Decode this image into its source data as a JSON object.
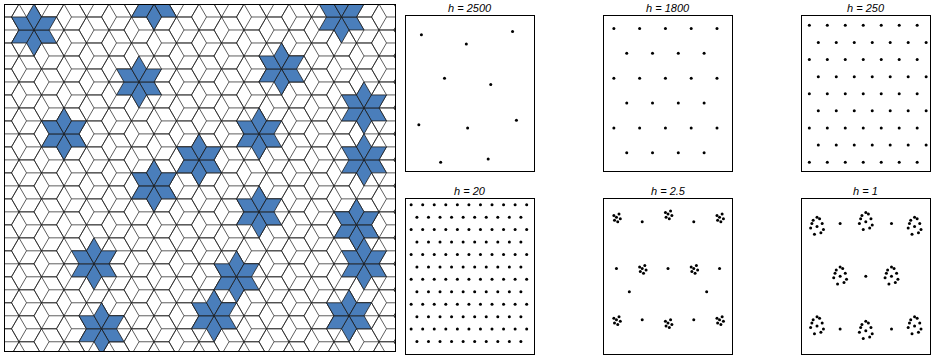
{
  "chart_data": [
    {
      "type": "scatter",
      "title": "h = 2500",
      "xlim": [
        0,
        1
      ],
      "ylim": [
        0,
        1
      ],
      "xticks": [],
      "yticks": [],
      "tick_labels": false,
      "grid": false,
      "marker": "dot",
      "color": "#000000",
      "x": [
        0.12,
        0.47,
        0.83,
        0.3,
        0.66,
        0.1,
        0.48,
        0.86,
        0.27,
        0.64
      ],
      "y": [
        0.88,
        0.82,
        0.9,
        0.6,
        0.56,
        0.3,
        0.28,
        0.33,
        0.06,
        0.08
      ]
    },
    {
      "type": "scatter",
      "title": "h = 1800",
      "xlim": [
        0,
        1
      ],
      "ylim": [
        0,
        1
      ],
      "xticks": [],
      "yticks": [],
      "tick_labels": false,
      "grid": false,
      "marker": "dot",
      "color": "#000000",
      "x": [
        0.08,
        0.28,
        0.48,
        0.68,
        0.88,
        0.18,
        0.38,
        0.58,
        0.78,
        0.08,
        0.28,
        0.48,
        0.68,
        0.88,
        0.18,
        0.38,
        0.58,
        0.78,
        0.08,
        0.28,
        0.48,
        0.68,
        0.88,
        0.18,
        0.38,
        0.58,
        0.78
      ],
      "y": [
        0.92,
        0.92,
        0.92,
        0.92,
        0.92,
        0.76,
        0.76,
        0.76,
        0.76,
        0.6,
        0.6,
        0.6,
        0.6,
        0.6,
        0.44,
        0.44,
        0.44,
        0.44,
        0.28,
        0.28,
        0.28,
        0.28,
        0.28,
        0.12,
        0.12,
        0.12,
        0.12
      ]
    },
    {
      "type": "scatter",
      "title": "h = 250",
      "xlim": [
        0,
        1
      ],
      "ylim": [
        0,
        1
      ],
      "xticks": [],
      "yticks": [],
      "tick_labels": false,
      "grid": false,
      "marker": "dot",
      "color": "#000000",
      "x": [
        0.06,
        0.2,
        0.34,
        0.48,
        0.62,
        0.76,
        0.9,
        0.13,
        0.27,
        0.41,
        0.55,
        0.69,
        0.83,
        0.97,
        0.06,
        0.2,
        0.34,
        0.48,
        0.62,
        0.76,
        0.9,
        0.13,
        0.27,
        0.41,
        0.55,
        0.69,
        0.83,
        0.97,
        0.06,
        0.2,
        0.34,
        0.48,
        0.62,
        0.76,
        0.9,
        0.13,
        0.27,
        0.41,
        0.55,
        0.69,
        0.83,
        0.97,
        0.06,
        0.2,
        0.34,
        0.48,
        0.62,
        0.76,
        0.9,
        0.13,
        0.27,
        0.41,
        0.55,
        0.69,
        0.83,
        0.97,
        0.06,
        0.2,
        0.34,
        0.48,
        0.62,
        0.76,
        0.9
      ],
      "y": [
        0.94,
        0.94,
        0.94,
        0.94,
        0.94,
        0.94,
        0.94,
        0.83,
        0.83,
        0.83,
        0.83,
        0.83,
        0.83,
        0.83,
        0.72,
        0.72,
        0.72,
        0.72,
        0.72,
        0.72,
        0.72,
        0.61,
        0.61,
        0.61,
        0.61,
        0.61,
        0.61,
        0.61,
        0.5,
        0.5,
        0.5,
        0.5,
        0.5,
        0.5,
        0.5,
        0.39,
        0.39,
        0.39,
        0.39,
        0.39,
        0.39,
        0.39,
        0.28,
        0.28,
        0.28,
        0.28,
        0.28,
        0.28,
        0.28,
        0.17,
        0.17,
        0.17,
        0.17,
        0.17,
        0.17,
        0.17,
        0.06,
        0.06,
        0.06,
        0.06,
        0.06,
        0.06,
        0.06
      ]
    },
    {
      "type": "scatter",
      "title": "h = 20",
      "xlim": [
        0,
        1
      ],
      "ylim": [
        0,
        1
      ],
      "xticks": [],
      "yticks": [],
      "tick_labels": false,
      "grid": false,
      "marker": "dot",
      "color": "#000000",
      "x": [
        0.04,
        0.13,
        0.22,
        0.31,
        0.4,
        0.49,
        0.58,
        0.67,
        0.76,
        0.85,
        0.94,
        0.085,
        0.175,
        0.265,
        0.355,
        0.445,
        0.535,
        0.625,
        0.715,
        0.805,
        0.895,
        0.04,
        0.13,
        0.22,
        0.31,
        0.4,
        0.49,
        0.58,
        0.67,
        0.76,
        0.85,
        0.94,
        0.085,
        0.175,
        0.265,
        0.355,
        0.445,
        0.535,
        0.625,
        0.715,
        0.805,
        0.895,
        0.04,
        0.13,
        0.22,
        0.31,
        0.4,
        0.49,
        0.58,
        0.67,
        0.76,
        0.85,
        0.94,
        0.085,
        0.175,
        0.265,
        0.355,
        0.445,
        0.535,
        0.625,
        0.715,
        0.805,
        0.895,
        0.04,
        0.13,
        0.22,
        0.31,
        0.4,
        0.49,
        0.58,
        0.67,
        0.76,
        0.85,
        0.94,
        0.085,
        0.175,
        0.265,
        0.355,
        0.445,
        0.535,
        0.625,
        0.715,
        0.805,
        0.895,
        0.04,
        0.13,
        0.22,
        0.31,
        0.4,
        0.49,
        0.58,
        0.67,
        0.76,
        0.85,
        0.94,
        0.085,
        0.175,
        0.265,
        0.355,
        0.445,
        0.535,
        0.625,
        0.715,
        0.805,
        0.895,
        0.04,
        0.13,
        0.22,
        0.31,
        0.4,
        0.49,
        0.58,
        0.67,
        0.76,
        0.85,
        0.94,
        0.085,
        0.175,
        0.265,
        0.355,
        0.445,
        0.535,
        0.625,
        0.715,
        0.805,
        0.895
      ],
      "y": [
        0.96,
        0.96,
        0.96,
        0.96,
        0.96,
        0.96,
        0.96,
        0.96,
        0.96,
        0.96,
        0.96,
        0.88,
        0.88,
        0.88,
        0.88,
        0.88,
        0.88,
        0.88,
        0.88,
        0.88,
        0.88,
        0.8,
        0.8,
        0.8,
        0.8,
        0.8,
        0.8,
        0.8,
        0.8,
        0.8,
        0.8,
        0.8,
        0.72,
        0.72,
        0.72,
        0.72,
        0.72,
        0.72,
        0.72,
        0.72,
        0.72,
        0.72,
        0.64,
        0.64,
        0.64,
        0.64,
        0.64,
        0.64,
        0.64,
        0.64,
        0.64,
        0.64,
        0.64,
        0.56,
        0.56,
        0.56,
        0.56,
        0.56,
        0.56,
        0.56,
        0.56,
        0.56,
        0.56,
        0.48,
        0.48,
        0.48,
        0.48,
        0.48,
        0.48,
        0.48,
        0.48,
        0.48,
        0.48,
        0.48,
        0.4,
        0.4,
        0.4,
        0.4,
        0.4,
        0.4,
        0.4,
        0.4,
        0.4,
        0.4,
        0.32,
        0.32,
        0.32,
        0.32,
        0.32,
        0.32,
        0.32,
        0.32,
        0.32,
        0.32,
        0.32,
        0.24,
        0.24,
        0.24,
        0.24,
        0.24,
        0.24,
        0.24,
        0.24,
        0.24,
        0.24,
        0.16,
        0.16,
        0.16,
        0.16,
        0.16,
        0.16,
        0.16,
        0.16,
        0.16,
        0.16,
        0.16,
        0.08,
        0.08,
        0.08,
        0.08,
        0.08,
        0.08,
        0.08,
        0.08,
        0.08,
        0.08
      ]
    },
    {
      "type": "scatter",
      "title": "h = 2.5",
      "xlim": [
        0,
        1
      ],
      "ylim": [
        0,
        1
      ],
      "xticks": [],
      "yticks": [],
      "tick_labels": false,
      "grid": false,
      "marker": "dot",
      "color": "#000000",
      "x": [
        0.1,
        0.12,
        0.08,
        0.11,
        0.085,
        0.13,
        0.5,
        0.52,
        0.48,
        0.51,
        0.485,
        0.53,
        0.9,
        0.92,
        0.88,
        0.91,
        0.885,
        0.93,
        0.3,
        0.32,
        0.28,
        0.31,
        0.285,
        0.33,
        0.7,
        0.72,
        0.68,
        0.71,
        0.685,
        0.73,
        0.1,
        0.12,
        0.08,
        0.11,
        0.085,
        0.13,
        0.5,
        0.52,
        0.48,
        0.51,
        0.485,
        0.53,
        0.9,
        0.92,
        0.88,
        0.91,
        0.885,
        0.93,
        0.3,
        0.7,
        0.2,
        0.8,
        0.3,
        0.7,
        0.5,
        0.1,
        0.9
      ],
      "y": [
        0.88,
        0.9,
        0.89,
        0.85,
        0.86,
        0.87,
        0.9,
        0.92,
        0.91,
        0.87,
        0.88,
        0.89,
        0.88,
        0.9,
        0.89,
        0.85,
        0.86,
        0.87,
        0.55,
        0.57,
        0.56,
        0.52,
        0.53,
        0.54,
        0.55,
        0.57,
        0.56,
        0.52,
        0.53,
        0.54,
        0.22,
        0.24,
        0.23,
        0.19,
        0.2,
        0.21,
        0.2,
        0.22,
        0.21,
        0.17,
        0.18,
        0.19,
        0.22,
        0.24,
        0.23,
        0.19,
        0.2,
        0.21,
        0.85,
        0.85,
        0.4,
        0.4,
        0.22,
        0.22,
        0.55,
        0.55,
        0.55
      ]
    },
    {
      "type": "scatter",
      "title": "h = 1",
      "xlim": [
        0,
        1
      ],
      "ylim": [
        0,
        1
      ],
      "xticks": [],
      "yticks": [],
      "tick_labels": false,
      "grid": false,
      "marker": "dot",
      "color": "#000000",
      "x": [
        0.12,
        0.16,
        0.08,
        0.14,
        0.1,
        0.17,
        0.07,
        0.15,
        0.09,
        0.12,
        0.5,
        0.54,
        0.46,
        0.52,
        0.48,
        0.55,
        0.45,
        0.53,
        0.47,
        0.5,
        0.88,
        0.92,
        0.84,
        0.9,
        0.86,
        0.93,
        0.83,
        0.91,
        0.85,
        0.88,
        0.3,
        0.34,
        0.26,
        0.32,
        0.28,
        0.35,
        0.25,
        0.33,
        0.27,
        0.3,
        0.7,
        0.74,
        0.66,
        0.72,
        0.68,
        0.75,
        0.65,
        0.73,
        0.67,
        0.7,
        0.12,
        0.16,
        0.08,
        0.14,
        0.1,
        0.17,
        0.07,
        0.15,
        0.09,
        0.12,
        0.5,
        0.54,
        0.46,
        0.52,
        0.48,
        0.55,
        0.45,
        0.53,
        0.47,
        0.5,
        0.88,
        0.92,
        0.84,
        0.9,
        0.86,
        0.93,
        0.83,
        0.91,
        0.85,
        0.88,
        0.3,
        0.7,
        0.5,
        0.3,
        0.7
      ],
      "y": [
        0.82,
        0.84,
        0.84,
        0.87,
        0.77,
        0.8,
        0.81,
        0.78,
        0.86,
        0.88,
        0.85,
        0.87,
        0.87,
        0.9,
        0.8,
        0.83,
        0.84,
        0.81,
        0.89,
        0.91,
        0.82,
        0.84,
        0.84,
        0.87,
        0.77,
        0.8,
        0.81,
        0.78,
        0.86,
        0.88,
        0.5,
        0.52,
        0.52,
        0.55,
        0.45,
        0.48,
        0.49,
        0.46,
        0.54,
        0.56,
        0.5,
        0.52,
        0.52,
        0.55,
        0.45,
        0.48,
        0.49,
        0.46,
        0.54,
        0.56,
        0.18,
        0.2,
        0.2,
        0.23,
        0.13,
        0.16,
        0.17,
        0.14,
        0.22,
        0.24,
        0.15,
        0.17,
        0.17,
        0.2,
        0.1,
        0.13,
        0.14,
        0.11,
        0.19,
        0.21,
        0.18,
        0.2,
        0.2,
        0.23,
        0.13,
        0.16,
        0.17,
        0.14,
        0.22,
        0.24,
        0.84,
        0.84,
        0.5,
        0.16,
        0.16
      ]
    }
  ]
}
